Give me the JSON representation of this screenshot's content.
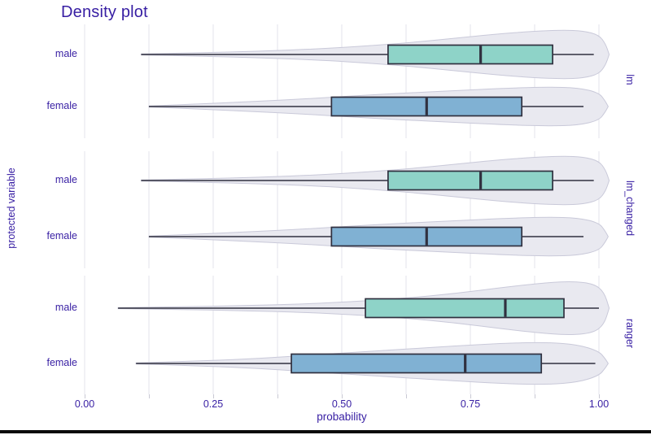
{
  "title": "Density plot",
  "axes": {
    "x_label": "probability",
    "y_label": "protected variable",
    "x_major_ticks": [
      {
        "value": 0.0,
        "label": "0.00"
      },
      {
        "value": 0.25,
        "label": "0.25"
      },
      {
        "value": 0.5,
        "label": "0.50"
      },
      {
        "value": 0.75,
        "label": "0.75"
      },
      {
        "value": 1.0,
        "label": "1.00"
      }
    ],
    "x_grid_values": [
      0,
      0.125,
      0.25,
      0.375,
      0.5,
      0.625,
      0.75,
      0.875,
      1.0
    ],
    "x_domain": [
      0,
      1
    ]
  },
  "colors": {
    "text": "#371ea3",
    "male_box": "#8ed3c8",
    "female_box": "#80b1d3",
    "violin_fill": "#e9e9f0",
    "violin_stroke": "#c9c9d9",
    "box_stroke": "#30303f",
    "gridline": "#e3e3eb",
    "tick": "#c9c9d4"
  },
  "chart_data": {
    "type": "violin-box",
    "title": "Density plot",
    "xlabel": "probability",
    "ylabel": "protected variable",
    "xlim": [
      0,
      1
    ],
    "grid": "vertical",
    "facets": [
      {
        "label": "lm",
        "rows": [
          {
            "group": "male",
            "fill": "#8ed3c8",
            "box": {
              "whisker_lo": 0.11,
              "q1": 0.59,
              "median": 0.77,
              "q3": 0.91,
              "whisker_hi": 0.99
            },
            "violin": [
              [
                0.11,
                0.6
              ],
              [
                0.22,
                2
              ],
              [
                0.34,
                4
              ],
              [
                0.46,
                7
              ],
              [
                0.56,
                11
              ],
              [
                0.64,
                15
              ],
              [
                0.72,
                20
              ],
              [
                0.8,
                25
              ],
              [
                0.87,
                28.5
              ],
              [
                0.93,
                30
              ],
              [
                0.97,
                29
              ],
              [
                1.0,
                24
              ],
              [
                1.013,
                13
              ],
              [
                1.02,
                0
              ]
            ]
          },
          {
            "group": "female",
            "fill": "#80b1d3",
            "box": {
              "whisker_lo": 0.125,
              "q1": 0.48,
              "median": 0.665,
              "q3": 0.85,
              "whisker_hi": 0.97
            },
            "violin": [
              [
                0.125,
                0.6
              ],
              [
                0.22,
                3
              ],
              [
                0.32,
                6
              ],
              [
                0.42,
                9
              ],
              [
                0.52,
                13
              ],
              [
                0.62,
                16.5
              ],
              [
                0.72,
                19.5
              ],
              [
                0.82,
                22.5
              ],
              [
                0.9,
                24
              ],
              [
                0.96,
                23
              ],
              [
                1.0,
                17
              ],
              [
                1.012,
                7
              ],
              [
                1.018,
                0
              ]
            ]
          }
        ]
      },
      {
        "label": "lm_changed",
        "rows": [
          {
            "group": "male",
            "fill": "#8ed3c8",
            "box": {
              "whisker_lo": 0.11,
              "q1": 0.59,
              "median": 0.77,
              "q3": 0.91,
              "whisker_hi": 0.99
            },
            "violin": [
              [
                0.11,
                0.6
              ],
              [
                0.22,
                2
              ],
              [
                0.34,
                4
              ],
              [
                0.46,
                7
              ],
              [
                0.56,
                11
              ],
              [
                0.64,
                15
              ],
              [
                0.72,
                20
              ],
              [
                0.8,
                25
              ],
              [
                0.87,
                28.5
              ],
              [
                0.93,
                30
              ],
              [
                0.97,
                29
              ],
              [
                1.0,
                24
              ],
              [
                1.013,
                13
              ],
              [
                1.02,
                0
              ]
            ]
          },
          {
            "group": "female",
            "fill": "#80b1d3",
            "box": {
              "whisker_lo": 0.125,
              "q1": 0.48,
              "median": 0.665,
              "q3": 0.85,
              "whisker_hi": 0.97
            },
            "violin": [
              [
                0.125,
                0.6
              ],
              [
                0.22,
                3
              ],
              [
                0.32,
                6
              ],
              [
                0.42,
                9
              ],
              [
                0.52,
                13
              ],
              [
                0.62,
                16.5
              ],
              [
                0.72,
                19.5
              ],
              [
                0.82,
                22.5
              ],
              [
                0.9,
                24
              ],
              [
                0.96,
                23
              ],
              [
                1.0,
                17
              ],
              [
                1.012,
                7
              ],
              [
                1.018,
                0
              ]
            ]
          }
        ]
      },
      {
        "label": "ranger",
        "rows": [
          {
            "group": "male",
            "fill": "#8ed3c8",
            "box": {
              "whisker_lo": 0.065,
              "q1": 0.546,
              "median": 0.818,
              "q3": 0.932,
              "whisker_hi": 1.0
            },
            "violin": [
              [
                0.065,
                0.6
              ],
              [
                0.18,
                1.6
              ],
              [
                0.3,
                3
              ],
              [
                0.42,
                5
              ],
              [
                0.52,
                8
              ],
              [
                0.62,
                12
              ],
              [
                0.72,
                18
              ],
              [
                0.82,
                26
              ],
              [
                0.9,
                31.5
              ],
              [
                0.95,
                33
              ],
              [
                0.99,
                30
              ],
              [
                1.01,
                20
              ],
              [
                1.02,
                0
              ]
            ]
          },
          {
            "group": "female",
            "fill": "#80b1d3",
            "box": {
              "whisker_lo": 0.1,
              "q1": 0.402,
              "median": 0.74,
              "q3": 0.888,
              "whisker_hi": 0.993
            },
            "violin": [
              [
                0.1,
                0.6
              ],
              [
                0.2,
                2.5
              ],
              [
                0.32,
                5.5
              ],
              [
                0.42,
                9.5
              ],
              [
                0.52,
                13.5
              ],
              [
                0.62,
                17.5
              ],
              [
                0.72,
                21.5
              ],
              [
                0.82,
                25
              ],
              [
                0.9,
                26
              ],
              [
                0.96,
                23
              ],
              [
                1.0,
                15
              ],
              [
                1.012,
                6
              ],
              [
                1.018,
                0
              ]
            ]
          }
        ]
      }
    ]
  }
}
